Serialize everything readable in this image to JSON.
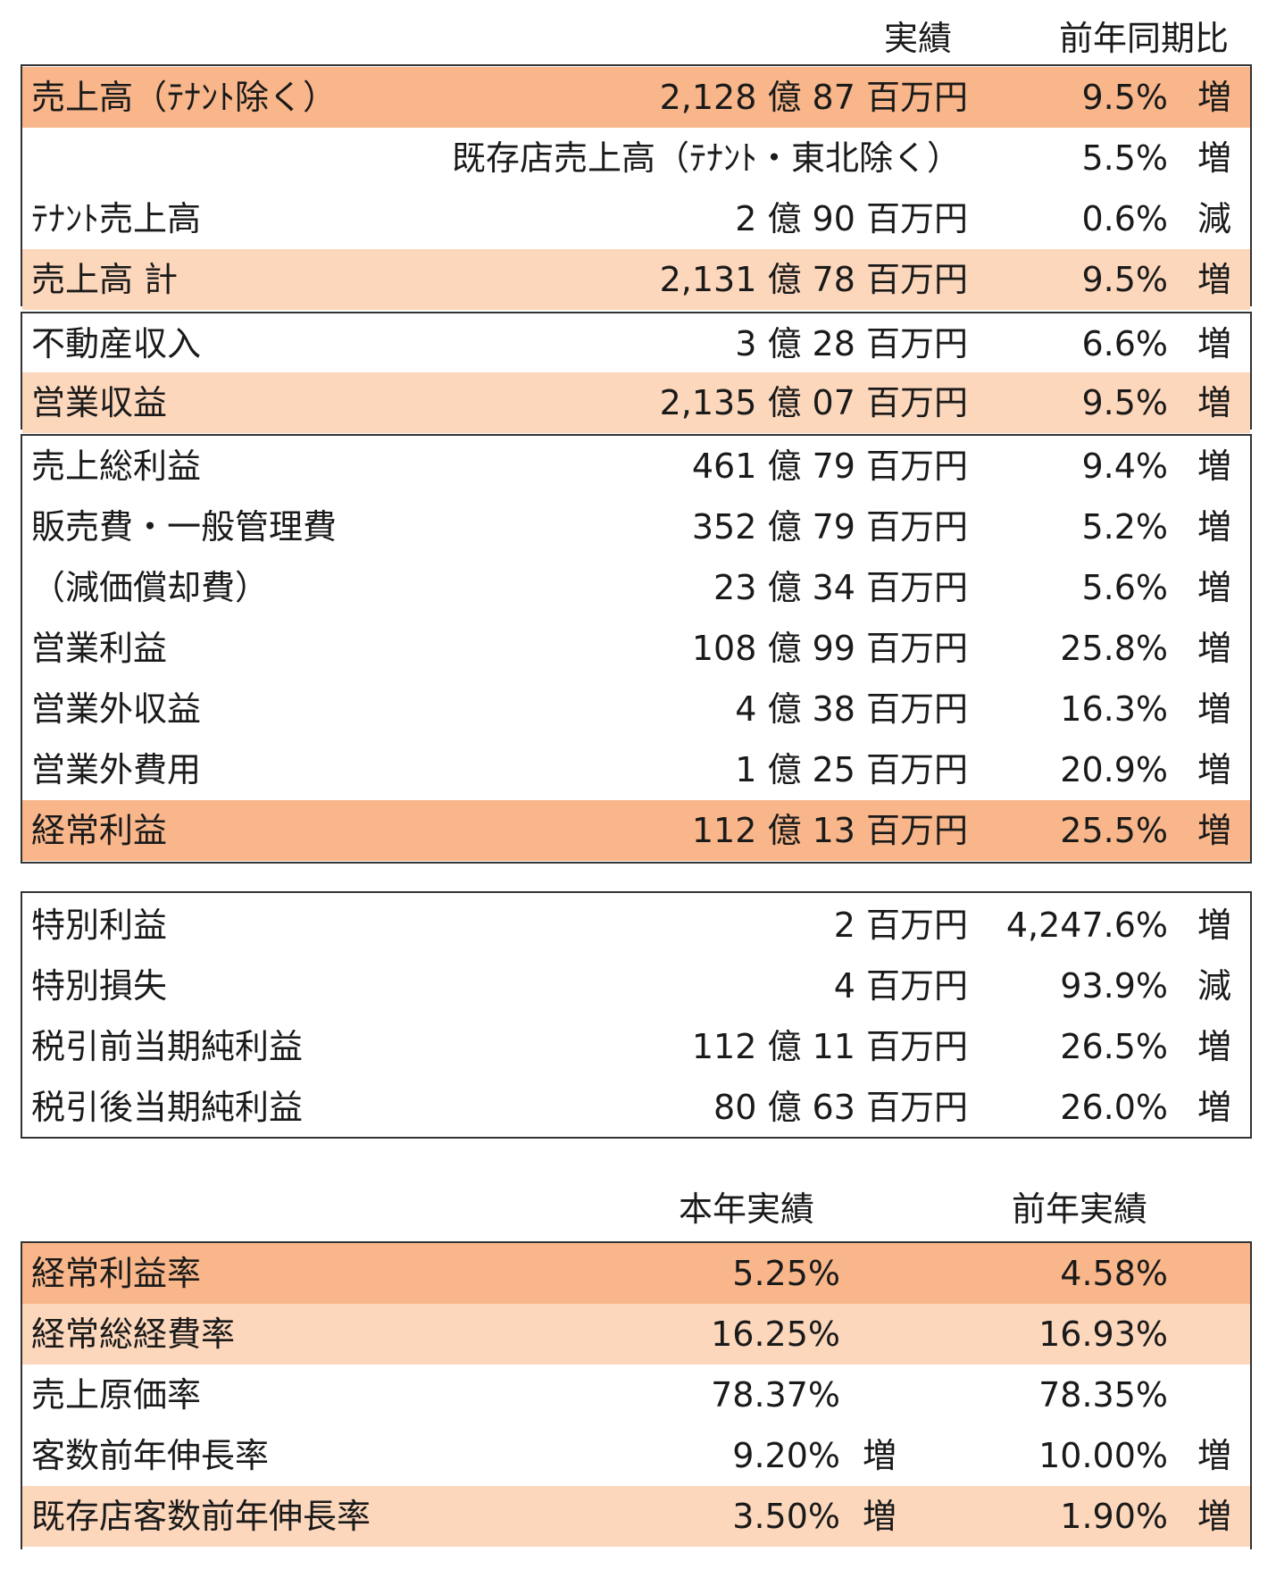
{
  "top_headers": {
    "actual": "実績",
    "yoy": "前年同期比"
  },
  "section_sales": [
    {
      "label": "売上高（ﾃﾅﾝﾄ除く）",
      "amount": "2,128 億 87 百万円",
      "pct": "9.5%",
      "dir": "増",
      "hl": "dark"
    },
    {
      "label": "既存店売上高（ﾃﾅﾝﾄ・東北除く）",
      "amount": "",
      "pct": "5.5%",
      "dir": "増",
      "hl": "none",
      "right_label": true
    },
    {
      "label": "ﾃﾅﾝﾄ売上高",
      "amount": "2 億 90 百万円",
      "pct": "0.6%",
      "dir": "減",
      "hl": "none"
    },
    {
      "label": "売上高 計",
      "amount": "2,131 億 78 百万円",
      "pct": "9.5%",
      "dir": "増",
      "hl": "light"
    }
  ],
  "section_revenue": [
    {
      "label": "不動産収入",
      "amount": "3 億 28 百万円",
      "pct": "6.6%",
      "dir": "増",
      "hl": "none"
    },
    {
      "label": "営業収益",
      "amount": "2,135 億 07 百万円",
      "pct": "9.5%",
      "dir": "増",
      "hl": "light"
    }
  ],
  "section_profit": [
    {
      "label": "売上総利益",
      "amount": "461 億 79 百万円",
      "pct": "9.4%",
      "dir": "増",
      "hl": "none"
    },
    {
      "label": "販売費・一般管理費",
      "amount": "352 億 79 百万円",
      "pct": "5.2%",
      "dir": "増",
      "hl": "none"
    },
    {
      "label": "（減価償却費）",
      "amount": "23 億 34 百万円",
      "pct": "5.6%",
      "dir": "増",
      "hl": "none"
    },
    {
      "label": "営業利益",
      "amount": "108 億 99 百万円",
      "pct": "25.8%",
      "dir": "増",
      "hl": "none"
    },
    {
      "label": "営業外収益",
      "amount": "4 億 38 百万円",
      "pct": "16.3%",
      "dir": "増",
      "hl": "none"
    },
    {
      "label": "営業外費用",
      "amount": "1 億 25 百万円",
      "pct": "20.9%",
      "dir": "増",
      "hl": "none"
    },
    {
      "label": "経常利益",
      "amount": "112 億 13 百万円",
      "pct": "25.5%",
      "dir": "増",
      "hl": "dark"
    }
  ],
  "section_special": [
    {
      "label": "特別利益",
      "amount": "2 百万円",
      "pct": "4,247.6%",
      "dir": "増",
      "hl": "none"
    },
    {
      "label": "特別損失",
      "amount": "4 百万円",
      "pct": "93.9%",
      "dir": "減",
      "hl": "none"
    },
    {
      "label": "税引前当期純利益",
      "amount": "112 億 11 百万円",
      "pct": "26.5%",
      "dir": "増",
      "hl": "none"
    },
    {
      "label": "税引後当期純利益",
      "amount": "80 億 63 百万円",
      "pct": "26.0%",
      "dir": "増",
      "hl": "none"
    }
  ],
  "ratio_headers": {
    "current": "本年実績",
    "previous": "前年実績"
  },
  "section_ratios": [
    {
      "label": "経常利益率",
      "cur": "5.25%",
      "cur_dir": "",
      "prev": "4.58%",
      "prev_dir": "",
      "hl": "dark"
    },
    {
      "label": "経常総経費率",
      "cur": "16.25%",
      "cur_dir": "",
      "prev": "16.93%",
      "prev_dir": "",
      "hl": "light"
    },
    {
      "label": "売上原価率",
      "cur": "78.37%",
      "cur_dir": "",
      "prev": "78.35%",
      "prev_dir": "",
      "hl": "none"
    },
    {
      "label": "客数前年伸長率",
      "cur": "9.20%",
      "cur_dir": "増",
      "prev": "10.00%",
      "prev_dir": "増",
      "hl": "none"
    },
    {
      "label": "既存店客数前年伸長率",
      "cur": "3.50%",
      "cur_dir": "増",
      "prev": "1.90%",
      "prev_dir": "増",
      "hl": "light"
    }
  ]
}
